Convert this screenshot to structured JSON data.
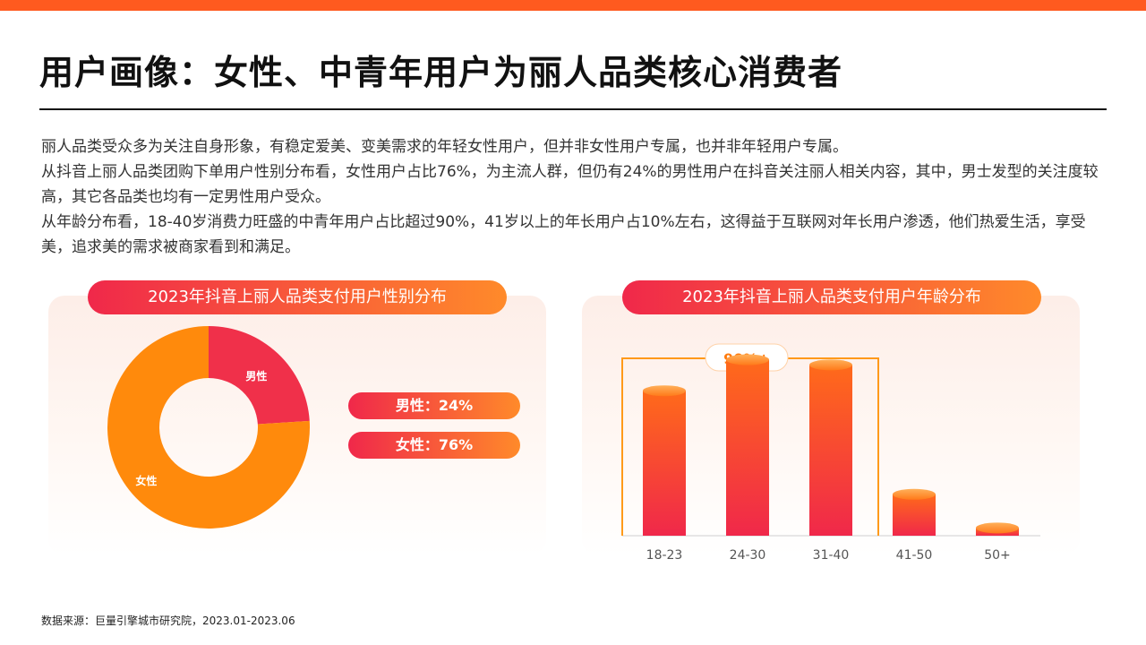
{
  "title": "用户画像：女性、中青年用户为丽人品类核心消费者",
  "intro": [
    "丽人品类受众多为关注自身形象，有稳定爱美、变美需求的年轻女性用户，但并非女性用户专属，也并非年轻用户专属。",
    "从抖音上丽人品类团购下单用户性别分布看，女性用户占比76%，为主流人群，但仍有24%的男性用户在抖音关注丽人相关内容，其中，男士发型的关注度较高，其它各品类也均有一定男性用户受众。",
    "从年龄分布看，18-40岁消费力旺盛的中青年用户占比超过90%，41岁以上的年长用户占10%左右，这得益于互联网对年长用户渗透，他们热爱生活，享受美，追求美的需求被商家看到和满足。"
  ],
  "source": "数据来源：巨量引擎城市研究院，2023.01-2023.06",
  "colors": {
    "accent": "#ff5a1f",
    "male": "#f0304a",
    "female": "#ff8a0c"
  },
  "chart_data": [
    {
      "type": "pie",
      "title": "2023年抖音上丽人品类支付用户性别分布",
      "categories": [
        "男性",
        "女性"
      ],
      "values": [
        24,
        76
      ],
      "legend": [
        "男性：24%",
        "女性：76%"
      ],
      "donut": true
    },
    {
      "type": "bar",
      "title": "2023年抖音上丽人品类支付用户年龄分布",
      "categories": [
        "18-23",
        "24-30",
        "31-40",
        "41-50",
        "50+"
      ],
      "values": [
        28,
        34,
        33,
        8,
        1.5
      ],
      "annotation": "90%+",
      "annotation_covers": [
        "18-23",
        "24-30",
        "31-40"
      ],
      "ylim": [
        0,
        36
      ],
      "y_axis_visible": false
    }
  ]
}
